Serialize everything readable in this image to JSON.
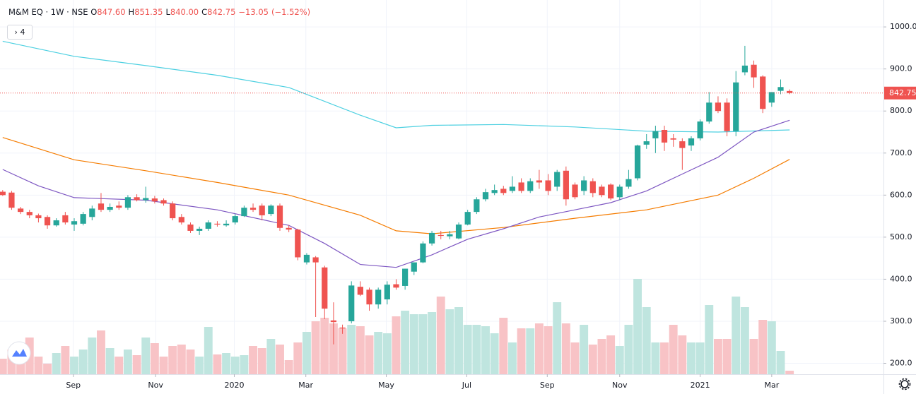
{
  "chart_data": {
    "type": "candlestick",
    "symbol": "M&M EQ · 1W · NSE",
    "quote": [
      {
        "label": "O",
        "value": "847.60"
      },
      {
        "label": "H",
        "value": "851.35"
      },
      {
        "label": "L",
        "value": "840.00"
      },
      {
        "label": "C",
        "value": "842.75"
      }
    ],
    "change": "−13.05",
    "change_percent": "(−1.52%)",
    "indicator_count": "4",
    "up_color": "#26a69a",
    "down_color": "#ef5350",
    "volume_up_color": "#bfe5df",
    "volume_down_color": "#f8c3c6",
    "open": [
      608,
      606,
      568,
      560,
      552,
      548,
      528,
      552,
      530,
      532,
      548,
      580,
      565,
      575,
      570,
      595,
      588,
      592,
      588,
      580,
      548,
      530,
      515,
      520,
      532,
      528,
      535,
      550,
      570,
      575,
      555,
      575,
      522,
      518,
      440,
      452,
      428,
      302,
      285,
      300,
      382,
      375,
      340,
      352,
      388,
      384,
      418,
      440,
      485,
      505,
      502,
      497,
      530,
      560,
      590,
      605,
      615,
      610,
      630,
      610,
      635,
      635,
      620,
      658,
      625,
      610,
      633,
      620,
      625,
      595,
      620,
      640,
      720,
      735,
      755,
      735,
      728,
      718,
      735,
      775,
      820,
      820,
      752,
      892,
      910,
      882,
      820,
      848,
      847.6
    ],
    "high": [
      612,
      610,
      572,
      565,
      556,
      552,
      545,
      560,
      545,
      560,
      575,
      605,
      580,
      585,
      600,
      602,
      620,
      598,
      592,
      585,
      555,
      535,
      525,
      540,
      538,
      540,
      555,
      575,
      580,
      580,
      578,
      580,
      528,
      520,
      462,
      455,
      432,
      345,
      292,
      395,
      395,
      380,
      380,
      395,
      400,
      425,
      440,
      490,
      515,
      515,
      515,
      535,
      565,
      595,
      615,
      625,
      622,
      645,
      640,
      640,
      660,
      650,
      660,
      668,
      630,
      645,
      640,
      625,
      628,
      625,
      660,
      720,
      745,
      765,
      765,
      745,
      735,
      740,
      780,
      845,
      835,
      830,
      895,
      955,
      920,
      885,
      845,
      875,
      851.35
    ],
    "low": [
      598,
      565,
      555,
      545,
      535,
      520,
      525,
      530,
      515,
      528,
      540,
      560,
      560,
      565,
      565,
      585,
      582,
      580,
      575,
      540,
      530,
      510,
      505,
      515,
      525,
      525,
      530,
      548,
      560,
      540,
      550,
      515,
      512,
      445,
      435,
      310,
      305,
      245,
      270,
      295,
      360,
      325,
      330,
      340,
      375,
      375,
      410,
      438,
      480,
      495,
      495,
      495,
      528,
      555,
      585,
      600,
      600,
      605,
      605,
      605,
      615,
      600,
      610,
      575,
      590,
      600,
      595,
      595,
      588,
      588,
      615,
      635,
      710,
      700,
      705,
      715,
      660,
      705,
      730,
      770,
      795,
      740,
      740,
      885,
      855,
      795,
      810,
      840,
      840
    ],
    "close": [
      600,
      570,
      560,
      552,
      545,
      528,
      540,
      535,
      538,
      555,
      568,
      565,
      572,
      570,
      595,
      588,
      593,
      585,
      580,
      545,
      535,
      515,
      520,
      535,
      530,
      532,
      550,
      570,
      565,
      552,
      575,
      522,
      518,
      452,
      458,
      440,
      330,
      298,
      283,
      385,
      363,
      340,
      375,
      387,
      380,
      425,
      440,
      485,
      510,
      503,
      507,
      530,
      560,
      590,
      607,
      612,
      605,
      620,
      610,
      633,
      630,
      610,
      655,
      590,
      595,
      635,
      605,
      600,
      592,
      620,
      638,
      718,
      728,
      752,
      725,
      732,
      712,
      735,
      775,
      820,
      800,
      752,
      868,
      908,
      880,
      805,
      845,
      857,
      842.75
    ],
    "volume": [
      22,
      35,
      22,
      52,
      25,
      15,
      30,
      40,
      25,
      35,
      52,
      62,
      37,
      25,
      35,
      27,
      52,
      44,
      25,
      40,
      42,
      35,
      25,
      67,
      28,
      30,
      25,
      27,
      40,
      37,
      50,
      42,
      20,
      45,
      60,
      75,
      80,
      72,
      65,
      70,
      68,
      55,
      60,
      58,
      82,
      90,
      85,
      85,
      88,
      110,
      92,
      95,
      70,
      70,
      68,
      58,
      80,
      45,
      65,
      65,
      72,
      68,
      102,
      72,
      45,
      70,
      42,
      50,
      55,
      40,
      70,
      135,
      95,
      45,
      45,
      70,
      55,
      45,
      45,
      98,
      50,
      50,
      110,
      95,
      50,
      77,
      75,
      33,
      5
    ],
    "vlim": [
      0,
      140
    ],
    "moving_averages": [
      {
        "color": "#4dd0e1",
        "x": [
          0,
          8,
          16,
          24,
          32,
          40,
          44,
          48,
          56,
          64,
          72,
          80,
          88
        ],
        "values": [
          966,
          930,
          908,
          885,
          856,
          790,
          760,
          766,
          768,
          762,
          752,
          750,
          755
        ]
      },
      {
        "color": "#f57c00",
        "x": [
          0,
          8,
          16,
          24,
          32,
          40,
          44,
          48,
          56,
          64,
          72,
          80,
          84,
          88
        ],
        "values": [
          737,
          684,
          658,
          630,
          600,
          552,
          515,
          508,
          523,
          545,
          565,
          600,
          640,
          685
        ]
      },
      {
        "color": "#7e57c2",
        "x": [
          0,
          4,
          8,
          16,
          24,
          32,
          36,
          40,
          44,
          48,
          52,
          56,
          60,
          64,
          68,
          72,
          76,
          80,
          84,
          88
        ],
        "values": [
          661,
          622,
          594,
          588,
          565,
          528,
          485,
          435,
          428,
          458,
          495,
          520,
          548,
          565,
          582,
          610,
          650,
          690,
          750,
          778
        ]
      }
    ],
    "xlim": [
      -0.3,
      98.5
    ],
    "xticks": [
      {
        "value": 7.9,
        "label": "Sep"
      },
      {
        "value": 17.1,
        "label": "Nov"
      },
      {
        "value": 25.9,
        "label": "2020"
      },
      {
        "value": 33.9,
        "label": "Mar"
      },
      {
        "value": 42.9,
        "label": "May"
      },
      {
        "value": 51.9,
        "label": "Jul"
      },
      {
        "value": 60.9,
        "label": "Sep"
      },
      {
        "value": 69.0,
        "label": "Nov"
      },
      {
        "value": 78.0,
        "label": "2021"
      },
      {
        "value": 86.0,
        "label": "Mar"
      }
    ],
    "ylim": [
      174,
      1064
    ],
    "yticks": [
      {
        "value": 200,
        "label": "200.0"
      },
      {
        "value": 300,
        "label": "300.0"
      },
      {
        "value": 400,
        "label": "400.0"
      },
      {
        "value": 500,
        "label": "500.0"
      },
      {
        "value": 600,
        "label": "600.0"
      },
      {
        "value": 700,
        "label": "700.0"
      },
      {
        "value": 800,
        "label": "800.0"
      },
      {
        "value": 900,
        "label": "900.0"
      },
      {
        "value": 1000,
        "label": "1000.0"
      }
    ],
    "grid": true,
    "last_price_line": true
  }
}
